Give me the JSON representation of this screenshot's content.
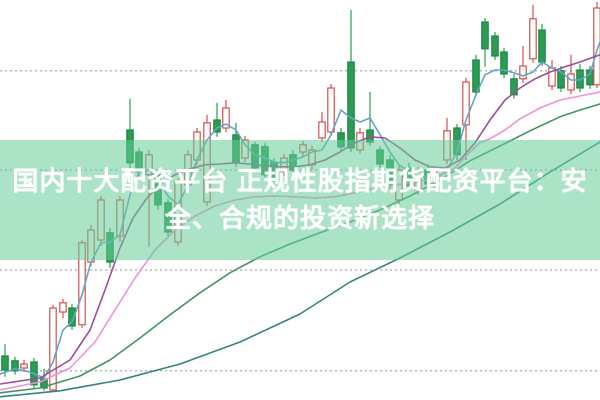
{
  "overlay": {
    "line1": "国内十大配资平台 正规性股指期货配资平台：安",
    "line2": "全、合规的投资新选择",
    "text_color": "#ffffff",
    "band_color": "#66cc99"
  },
  "chart_data": {
    "type": "candlestick",
    "title": "",
    "xlabel": "",
    "ylabel": "",
    "x_axis_visible": false,
    "y_axis_visible": false,
    "grid": "horizontal-dotted",
    "ylim": [
      0,
      100
    ],
    "y_units": "relative price (axis labels not visible in image)",
    "grid_prices": [
      82.3,
      57.5,
      32.5,
      7.3
    ],
    "colors": {
      "up_candle_border": "#d4504c",
      "up_candle_fill": "#ffffff",
      "down_candle_fill": "#2a9d53",
      "down_candle_border": "#1b8746",
      "grid": "#b5b5b5",
      "background": "#ffffff",
      "band_overlay": "#66cc99"
    },
    "candle_format": [
      "x",
      "open",
      "high",
      "low",
      "close"
    ],
    "candles": [
      [
        5,
        11.0,
        14.0,
        5.8,
        7.5
      ],
      [
        15,
        9.8,
        10.8,
        6.3,
        7.3
      ],
      [
        24,
        8.0,
        10.0,
        7.0,
        9.0
      ],
      [
        34,
        9.5,
        10.5,
        2.8,
        3.8
      ],
      [
        44,
        5.3,
        7.8,
        2.3,
        3.0
      ],
      [
        53,
        2.5,
        23.8,
        2.0,
        23.0
      ],
      [
        63,
        22.0,
        25.3,
        20.5,
        24.3
      ],
      [
        72,
        23.0,
        24.0,
        17.5,
        18.5
      ],
      [
        82,
        18.8,
        40.0,
        18.0,
        39.3
      ],
      [
        91,
        34.5,
        43.8,
        33.5,
        42.5
      ],
      [
        101,
        40.0,
        51.0,
        38.5,
        50.0
      ],
      [
        110,
        41.8,
        43.0,
        33.0,
        34.5
      ],
      [
        120,
        41.0,
        51.0,
        39.5,
        50.0
      ],
      [
        130,
        67.5,
        75.3,
        57.5,
        59.3
      ],
      [
        139,
        62.0,
        63.0,
        56.0,
        57.0
      ],
      [
        149,
        56.3,
        62.5,
        38.3,
        61.3
      ],
      [
        158,
        56.3,
        57.5,
        47.5,
        48.8
      ],
      [
        168,
        49.3,
        50.3,
        41.0,
        42.0
      ],
      [
        178,
        39.5,
        55.5,
        38.5,
        54.5
      ],
      [
        188,
        53.8,
        62.5,
        52.5,
        61.3
      ],
      [
        197,
        60.0,
        68.0,
        58.8,
        67.0
      ],
      [
        207,
        49.5,
        71.3,
        48.5,
        69.3
      ],
      [
        217,
        70.0,
        74.3,
        65.8,
        67.0
      ],
      [
        226,
        68.0,
        75.0,
        67.0,
        73.0
      ],
      [
        236,
        66.3,
        69.3,
        58.3,
        59.3
      ],
      [
        245,
        60.5,
        66.0,
        59.5,
        65.0
      ],
      [
        255,
        63.8,
        64.5,
        57.0,
        58.0
      ],
      [
        265,
        63.3,
        64.3,
        55.3,
        56.3
      ],
      [
        274,
        59.5,
        60.5,
        54.5,
        55.5
      ],
      [
        284,
        57.0,
        61.5,
        56.0,
        60.5
      ],
      [
        293,
        61.3,
        62.5,
        56.5,
        57.5
      ],
      [
        303,
        62.0,
        64.8,
        60.8,
        63.8
      ],
      [
        312,
        58.8,
        63.5,
        57.5,
        62.5
      ],
      [
        322,
        65.5,
        72.0,
        64.5,
        69.5
      ],
      [
        331,
        67.0,
        79.0,
        66.0,
        78.0
      ],
      [
        341,
        66.8,
        68.0,
        62.3,
        63.3
      ],
      [
        351,
        84.5,
        97.5,
        62.0,
        63.0
      ],
      [
        360,
        62.5,
        68.0,
        61.5,
        66.8
      ],
      [
        370,
        67.5,
        77.0,
        63.5,
        64.5
      ],
      [
        380,
        62.5,
        63.5,
        58.0,
        59.0
      ],
      [
        390,
        60.0,
        61.3,
        52.5,
        53.8
      ],
      [
        399,
        50.0,
        58.8,
        49.0,
        57.5
      ],
      [
        409,
        58.0,
        59.3,
        52.5,
        53.5
      ],
      [
        418,
        52.5,
        58.3,
        51.3,
        57.0
      ],
      [
        428,
        57.5,
        58.8,
        53.0,
        54.0
      ],
      [
        437,
        53.0,
        57.5,
        51.8,
        56.3
      ],
      [
        447,
        60.0,
        70.5,
        59.0,
        67.3
      ],
      [
        457,
        68.0,
        69.0,
        60.0,
        61.3
      ],
      [
        466,
        68.8,
        80.5,
        60.0,
        79.5
      ],
      [
        476,
        85.0,
        86.3,
        76.0,
        77.0
      ],
      [
        485,
        94.5,
        95.5,
        83.3,
        87.8
      ],
      [
        495,
        91.0,
        92.0,
        85.0,
        86.0
      ],
      [
        504,
        87.0,
        88.0,
        80.5,
        81.5
      ],
      [
        514,
        80.3,
        81.5,
        75.3,
        76.3
      ],
      [
        523,
        80.3,
        88.5,
        79.3,
        83.5
      ],
      [
        533,
        85.3,
        98.8,
        84.3,
        95.3
      ],
      [
        542,
        92.5,
        94.0,
        83.5,
        84.5
      ],
      [
        552,
        78.5,
        85.0,
        77.5,
        83.0
      ],
      [
        561,
        82.3,
        83.5,
        77.0,
        78.0
      ],
      [
        571,
        77.5,
        86.3,
        76.5,
        81.5
      ],
      [
        580,
        82.5,
        84.0,
        77.0,
        78.0
      ],
      [
        590,
        82.5,
        83.5,
        77.8,
        78.8
      ],
      [
        597,
        78.8,
        99.5,
        78.0,
        98.0
      ]
    ],
    "ma_lines": [
      {
        "name": "ma-cyan-fast",
        "color": "#62a5c5",
        "points": [
          [
            0,
            6.5
          ],
          [
            15,
            7.8
          ],
          [
            30,
            7.0
          ],
          [
            44,
            5.5
          ],
          [
            53,
            9.5
          ],
          [
            63,
            17.5
          ],
          [
            72,
            19.5
          ],
          [
            82,
            26.3
          ],
          [
            91,
            34.5
          ],
          [
            101,
            39.3
          ],
          [
            110,
            39.5
          ],
          [
            120,
            41.3
          ],
          [
            130,
            51.3
          ],
          [
            139,
            57.0
          ],
          [
            149,
            57.5
          ],
          [
            158,
            55.0
          ],
          [
            168,
            51.0
          ],
          [
            178,
            48.8
          ],
          [
            188,
            53.8
          ],
          [
            197,
            60.0
          ],
          [
            207,
            65.0
          ],
          [
            217,
            68.0
          ],
          [
            226,
            69.0
          ],
          [
            236,
            67.5
          ],
          [
            245,
            63.8
          ],
          [
            255,
            61.3
          ],
          [
            265,
            60.5
          ],
          [
            274,
            59.5
          ],
          [
            284,
            59.3
          ],
          [
            293,
            60.0
          ],
          [
            303,
            60.8
          ],
          [
            312,
            62.0
          ],
          [
            322,
            62.5
          ],
          [
            331,
            66.3
          ],
          [
            341,
            72.5
          ],
          [
            351,
            70.5
          ],
          [
            360,
            69.5
          ],
          [
            370,
            70.5
          ],
          [
            380,
            66.3
          ],
          [
            390,
            62.0
          ],
          [
            399,
            58.8
          ],
          [
            409,
            57.0
          ],
          [
            418,
            56.0
          ],
          [
            428,
            55.5
          ],
          [
            437,
            55.3
          ],
          [
            447,
            57.5
          ],
          [
            457,
            62.0
          ],
          [
            466,
            70.0
          ],
          [
            476,
            76.3
          ],
          [
            485,
            81.3
          ],
          [
            495,
            82.5
          ],
          [
            504,
            82.5
          ],
          [
            514,
            81.8
          ],
          [
            523,
            81.0
          ],
          [
            533,
            82.0
          ],
          [
            542,
            84.5
          ],
          [
            552,
            83.0
          ],
          [
            561,
            82.0
          ],
          [
            571,
            80.0
          ],
          [
            580,
            80.0
          ],
          [
            590,
            81.5
          ],
          [
            597,
            87.5
          ],
          [
            600,
            89.5
          ]
        ]
      },
      {
        "name": "ma-purple",
        "color": "#9b4f97",
        "points": [
          [
            0,
            4.0
          ],
          [
            40,
            5.5
          ],
          [
            70,
            10.0
          ],
          [
            90,
            17.5
          ],
          [
            105,
            27.5
          ],
          [
            120,
            38.0
          ],
          [
            133,
            45.5
          ],
          [
            147,
            50.5
          ],
          [
            160,
            53.8
          ],
          [
            175,
            56.3
          ],
          [
            190,
            57.8
          ],
          [
            205,
            58.8
          ],
          [
            220,
            59.0
          ],
          [
            235,
            59.3
          ],
          [
            250,
            59.0
          ],
          [
            265,
            58.5
          ],
          [
            280,
            58.3
          ],
          [
            295,
            58.3
          ],
          [
            310,
            58.8
          ],
          [
            325,
            60.0
          ],
          [
            340,
            62.0
          ],
          [
            355,
            64.3
          ],
          [
            370,
            65.8
          ],
          [
            385,
            65.5
          ],
          [
            400,
            63.0
          ],
          [
            415,
            60.0
          ],
          [
            430,
            58.3
          ],
          [
            445,
            58.0
          ],
          [
            460,
            60.0
          ],
          [
            475,
            64.3
          ],
          [
            490,
            70.0
          ],
          [
            505,
            75.0
          ],
          [
            520,
            78.0
          ],
          [
            535,
            80.3
          ],
          [
            550,
            82.0
          ],
          [
            565,
            83.3
          ],
          [
            580,
            84.5
          ],
          [
            600,
            86.3
          ]
        ]
      },
      {
        "name": "ma-pink",
        "color": "#ef92d8",
        "points": [
          [
            0,
            2.5
          ],
          [
            40,
            4.5
          ],
          [
            70,
            8.0
          ],
          [
            95,
            14.5
          ],
          [
            115,
            22.5
          ],
          [
            135,
            30.5
          ],
          [
            155,
            37.5
          ],
          [
            175,
            42.5
          ],
          [
            195,
            46.0
          ],
          [
            215,
            48.5
          ],
          [
            235,
            50.0
          ],
          [
            255,
            50.8
          ],
          [
            275,
            51.0
          ],
          [
            295,
            50.8
          ],
          [
            315,
            50.5
          ],
          [
            335,
            50.8
          ],
          [
            355,
            51.8
          ],
          [
            375,
            53.0
          ],
          [
            395,
            53.8
          ],
          [
            415,
            54.3
          ],
          [
            435,
            55.5
          ],
          [
            455,
            58.0
          ],
          [
            470,
            62.0
          ],
          [
            480,
            64.3
          ],
          [
            490,
            65.3
          ],
          [
            505,
            67.5
          ],
          [
            520,
            70.3
          ],
          [
            540,
            73.0
          ],
          [
            560,
            75.0
          ],
          [
            580,
            76.0
          ],
          [
            600,
            77.0
          ]
        ]
      },
      {
        "name": "ma-green",
        "color": "#3f9665",
        "points": [
          [
            0,
            1.8
          ],
          [
            40,
            3.0
          ],
          [
            80,
            6.0
          ],
          [
            110,
            10.0
          ],
          [
            140,
            15.5
          ],
          [
            170,
            21.3
          ],
          [
            200,
            26.8
          ],
          [
            230,
            31.8
          ],
          [
            260,
            35.8
          ],
          [
            290,
            39.0
          ],
          [
            320,
            41.8
          ],
          [
            350,
            44.5
          ],
          [
            380,
            47.5
          ],
          [
            410,
            51.0
          ],
          [
            440,
            55.0
          ],
          [
            470,
            59.8
          ],
          [
            500,
            63.5
          ],
          [
            530,
            67.3
          ],
          [
            560,
            70.8
          ],
          [
            580,
            72.5
          ],
          [
            600,
            74.0
          ]
        ]
      },
      {
        "name": "ma-teal-slow",
        "color": "#37837f",
        "points": [
          [
            0,
            0.8
          ],
          [
            60,
            2.3
          ],
          [
            120,
            5.0
          ],
          [
            180,
            9.0
          ],
          [
            240,
            14.5
          ],
          [
            300,
            21.5
          ],
          [
            350,
            29.5
          ],
          [
            400,
            35.5
          ],
          [
            450,
            42.0
          ],
          [
            500,
            49.0
          ],
          [
            550,
            57.0
          ],
          [
            600,
            64.5
          ]
        ]
      }
    ]
  }
}
